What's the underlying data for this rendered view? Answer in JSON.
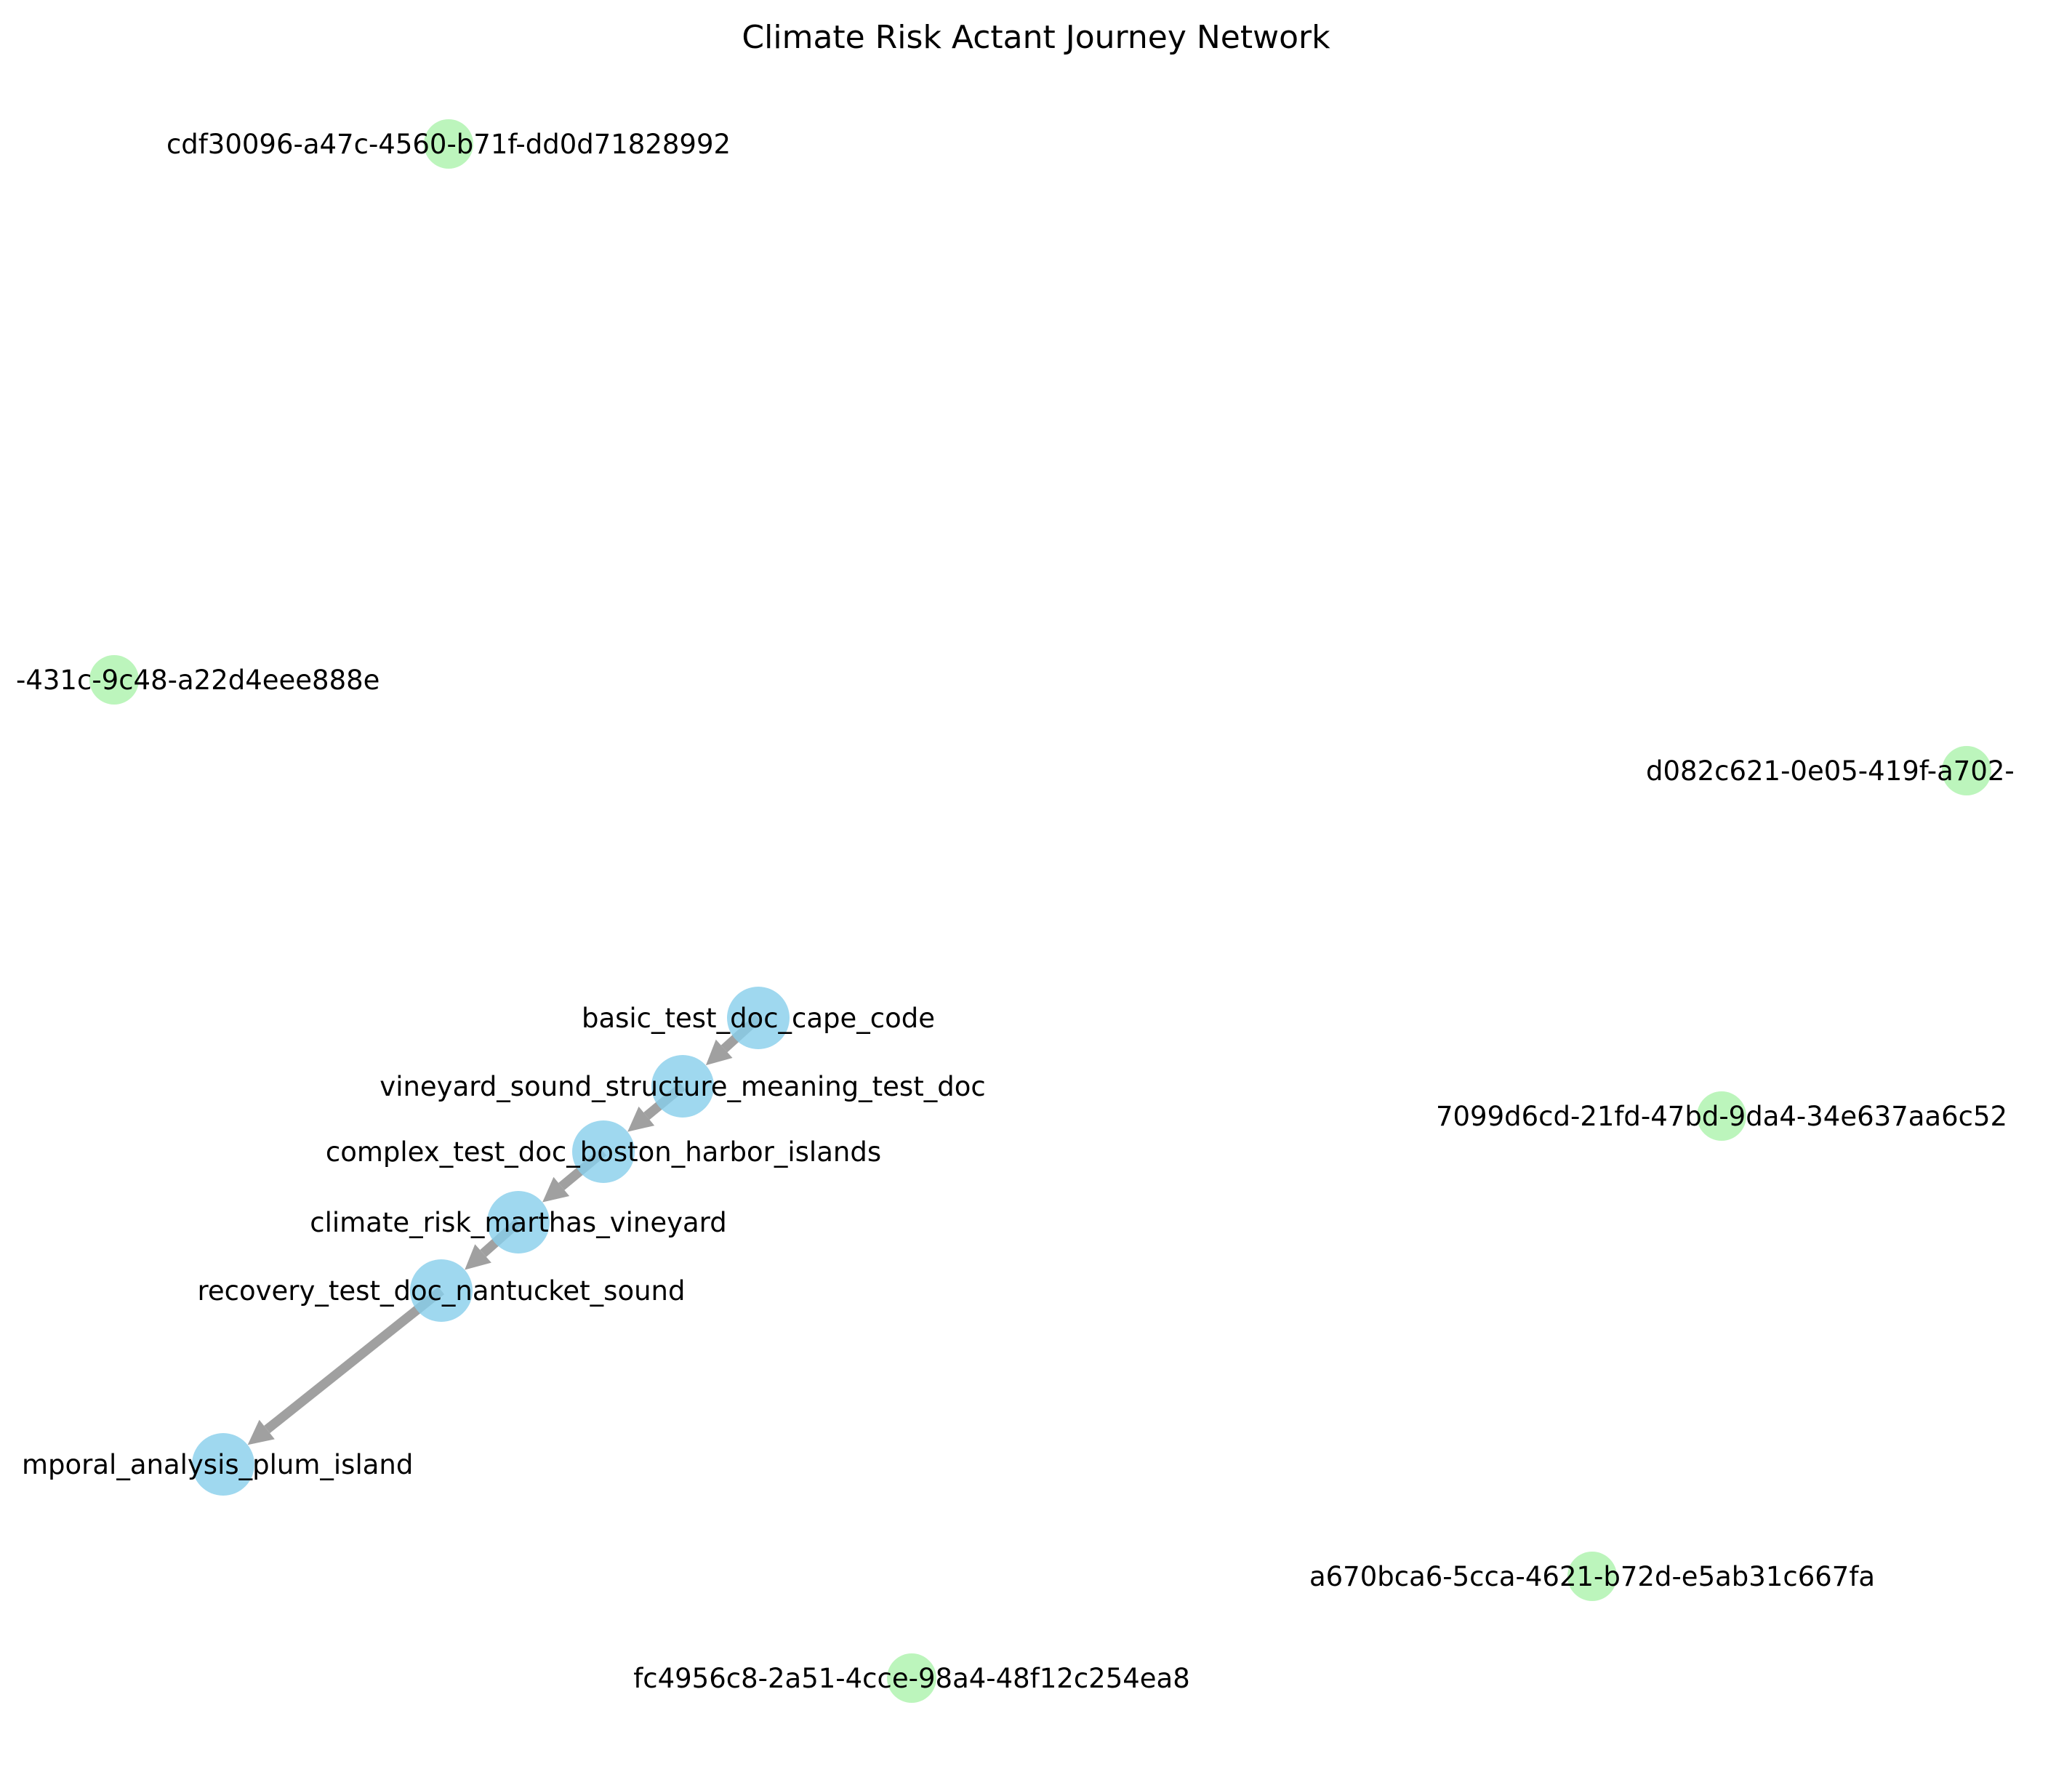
{
  "title": "Climate Risk Actant Journey Network",
  "colors": {
    "document_node": "#87CEEB",
    "actant_node": "#90EE90",
    "edge": "#808080",
    "background": "#ffffff"
  },
  "nodes": [
    {
      "id": "cdf30096-a47c-4560-b71f-dd0d71828992",
      "label": "cdf30096-a47c-4560-b71f-dd0d71828992",
      "kind": "actant"
    },
    {
      "id": "partial-431c-9c48-a22d4eee888e",
      "label": "-431c-9c48-a22d4eee888e",
      "kind": "actant"
    },
    {
      "id": "partial-d082c621-0e05-419f-a702",
      "label": "d082c621-0e05-419f-a702-",
      "kind": "actant"
    },
    {
      "id": "7099d6cd-21fd-47bd-9da4-34e637aa6c52",
      "label": "7099d6cd-21fd-47bd-9da4-34e637aa6c52",
      "kind": "actant"
    },
    {
      "id": "a670bca6-5cca-4621-b72d-e5ab31c667fa",
      "label": "a670bca6-5cca-4621-b72d-e5ab31c667fa",
      "kind": "actant"
    },
    {
      "id": "fc4956c8-2a51-4cce-98a4-48f12c254ea8",
      "label": "fc4956c8-2a51-4cce-98a4-48f12c254ea8",
      "kind": "actant"
    },
    {
      "id": "basic_test_doc_cape_code",
      "label": "basic_test_doc_cape_code",
      "kind": "document"
    },
    {
      "id": "vineyard_sound_structure_meaning_test_doc",
      "label": "vineyard_sound_structure_meaning_test_doc",
      "kind": "document"
    },
    {
      "id": "complex_test_doc_boston_harbor_islands",
      "label": "complex_test_doc_boston_harbor_islands",
      "kind": "document"
    },
    {
      "id": "climate_risk_marthas_vineyard",
      "label": "climate_risk_marthas_vineyard",
      "kind": "document"
    },
    {
      "id": "recovery_test_doc_nantucket_sound",
      "label": "recovery_test_doc_nantucket_sound",
      "kind": "document"
    },
    {
      "id": "temporal_analysis_plum_island",
      "label": "mporal_analysis_plum_island",
      "kind": "document"
    }
  ],
  "edges": [
    {
      "from": "basic_test_doc_cape_code",
      "to": "vineyard_sound_structure_meaning_test_doc"
    },
    {
      "from": "vineyard_sound_structure_meaning_test_doc",
      "to": "complex_test_doc_boston_harbor_islands"
    },
    {
      "from": "complex_test_doc_boston_harbor_islands",
      "to": "climate_risk_marthas_vineyard"
    },
    {
      "from": "climate_risk_marthas_vineyard",
      "to": "recovery_test_doc_nantucket_sound"
    },
    {
      "from": "recovery_test_doc_nantucket_sound",
      "to": "temporal_analysis_plum_island"
    }
  ]
}
